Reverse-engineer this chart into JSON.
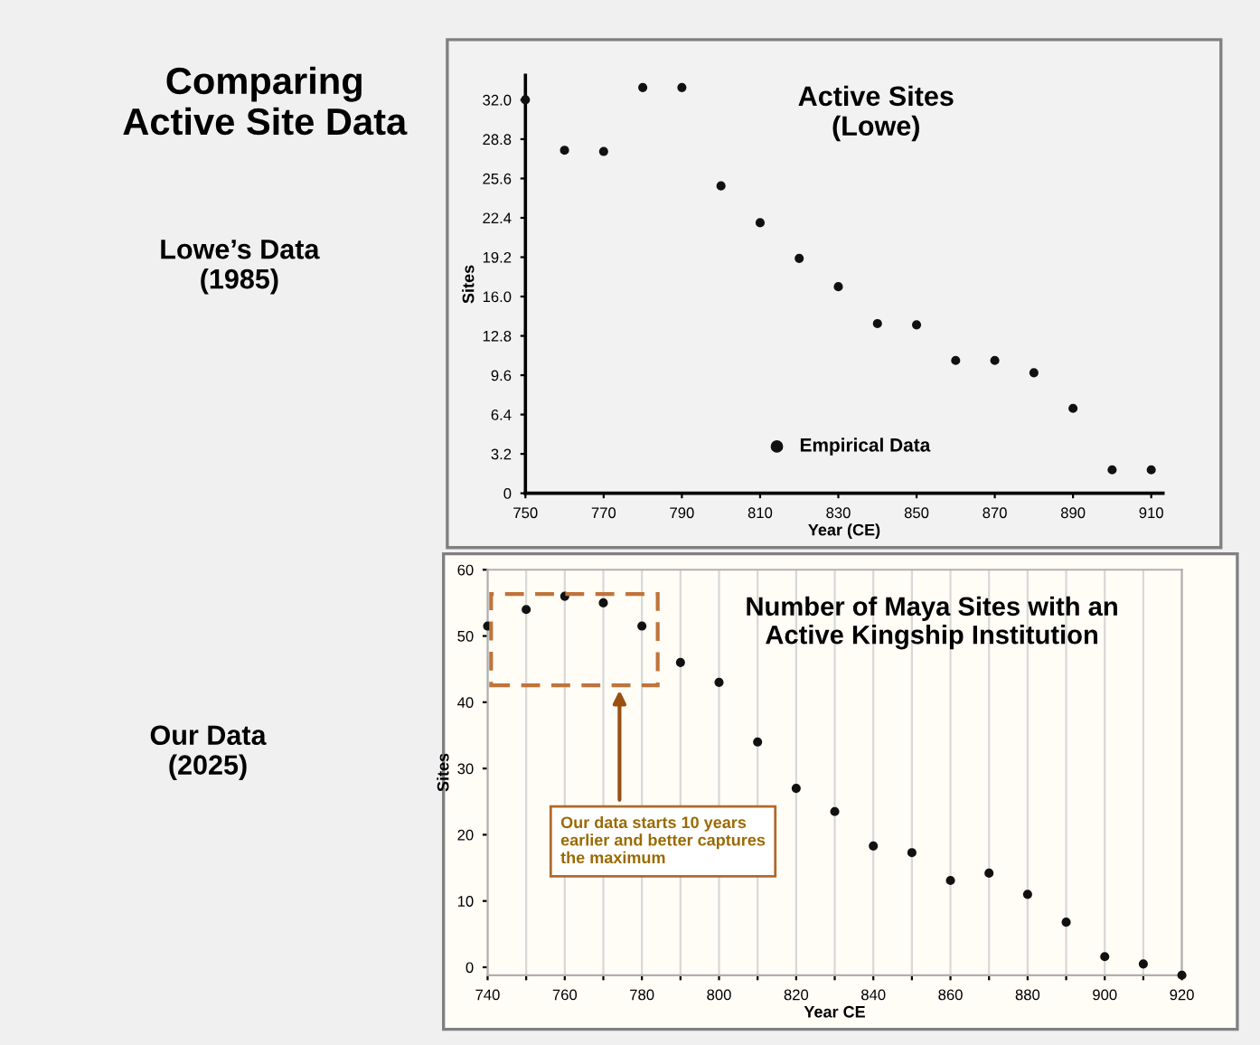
{
  "chart_data": [
    {
      "type": "scatter",
      "title": "Active Sites\n(Lowe)",
      "xlabel": "Year (CE)",
      "ylabel": "Sites",
      "x": [
        750,
        760,
        770,
        780,
        790,
        800,
        810,
        820,
        830,
        840,
        850,
        860,
        870,
        880,
        890,
        900,
        910
      ],
      "series": [
        {
          "name": "Empirical Data",
          "color": "#111111",
          "values": [
            32.0,
            27.9,
            27.8,
            33.0,
            33.0,
            25.0,
            22.0,
            19.1,
            16.8,
            13.8,
            13.7,
            10.8,
            10.8,
            9.8,
            6.9,
            1.9,
            1.9
          ]
        }
      ],
      "xlim": [
        750,
        913
      ],
      "ylim": [
        0,
        34
      ],
      "xticks": [
        750,
        770,
        790,
        810,
        830,
        850,
        870,
        890,
        910
      ],
      "yticks": [
        0,
        {
          "value": 3.2,
          "label": "3.2"
        },
        {
          "value": 6.4,
          "label": "6.4"
        },
        {
          "value": 9.6,
          "label": "9.6"
        },
        {
          "value": 12.8,
          "label": "12.8"
        },
        {
          "value": 16,
          "label": "16.0"
        },
        {
          "value": 19.2,
          "label": "19.2"
        },
        {
          "value": 22.4,
          "label": "22.4"
        },
        {
          "value": 25.6,
          "label": "25.6"
        },
        {
          "value": 28.8,
          "label": "28.8"
        },
        {
          "value": 32,
          "label": "32.0"
        }
      ],
      "grid": false,
      "legend": "bottom",
      "marker": "circle",
      "annotations": [
        "Comparing\nActive Site Data",
        "Lowe’s Data\n(1985)"
      ]
    },
    {
      "type": "scatter",
      "title": "Number of Maya Sites with an\nActive Kingship Institution",
      "xlabel": "Year CE",
      "ylabel": "Sites",
      "x": [
        740,
        750,
        760,
        770,
        780,
        790,
        800,
        810,
        820,
        830,
        840,
        850,
        860,
        870,
        880,
        890,
        900,
        910,
        920
      ],
      "series": [
        {
          "color": "#111111",
          "values": [
            51.5,
            54,
            56,
            55,
            51.5,
            46,
            43,
            34,
            27,
            23.5,
            18.3,
            17.3,
            13.1,
            14.2,
            11,
            6.8,
            1.6,
            0.5,
            -1.2
          ]
        }
      ],
      "xlim": [
        740,
        920
      ],
      "ylim": [
        -1.2,
        60
      ],
      "xticks": [
        740,
        {
          "value": 750,
          "label": null
        },
        760,
        {
          "value": 770,
          "label": null
        },
        780,
        {
          "value": 790,
          "label": null
        },
        800,
        {
          "value": 810,
          "label": null
        },
        820,
        {
          "value": 830,
          "label": null
        },
        840,
        {
          "value": 850,
          "label": null
        },
        860,
        {
          "value": 870,
          "label": null
        },
        880,
        {
          "value": 890,
          "label": null
        },
        900,
        {
          "value": 910,
          "label": null
        },
        920
      ],
      "yticks": [
        0,
        10,
        20,
        30,
        40,
        50,
        60
      ],
      "grid": "x",
      "marker": "circle",
      "annotations": [
        "Our Data\n(2025)",
        "Our data starts 10 years\nearlier and better captures\nthe maximum"
      ]
    }
  ]
}
